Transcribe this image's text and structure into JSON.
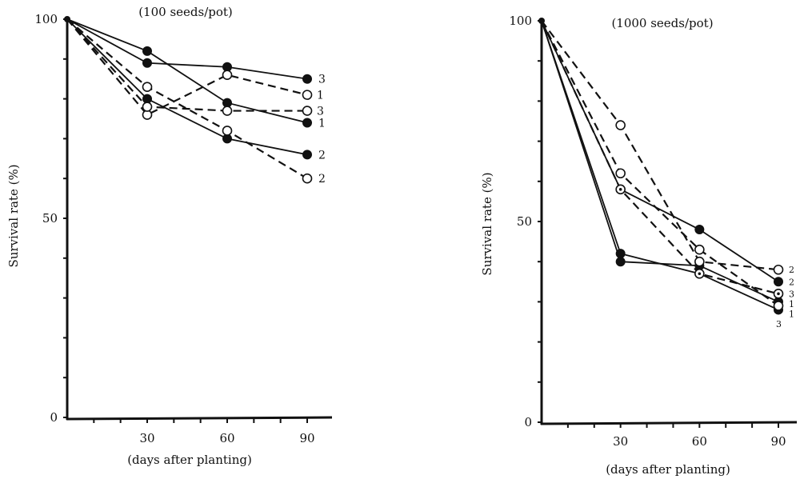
{
  "chart_data": [
    {
      "type": "line",
      "title": "(100 seeds/pot)",
      "xlabel": "(days after planting)",
      "ylabel": "Survival rate (%)",
      "x": [
        0,
        30,
        60,
        90
      ],
      "xticks": [
        "30",
        "60",
        "90"
      ],
      "yticks": [
        "0",
        "50",
        "100"
      ],
      "xlim": [
        0,
        100
      ],
      "ylim": [
        0,
        100
      ],
      "grid": false,
      "legend": "none",
      "series": [
        {
          "name": "1",
          "marker": "filled",
          "line": "solid",
          "values": [
            100,
            92,
            79,
            74
          ]
        },
        {
          "name": "2",
          "marker": "filled",
          "line": "solid",
          "values": [
            100,
            80,
            70,
            66
          ]
        },
        {
          "name": "3",
          "marker": "filled",
          "line": "solid",
          "values": [
            100,
            89,
            88,
            85
          ]
        },
        {
          "name": "1",
          "marker": "open",
          "line": "dashed",
          "values": [
            100,
            76,
            86,
            81
          ]
        },
        {
          "name": "2",
          "marker": "open",
          "line": "dashed",
          "values": [
            100,
            83,
            72,
            60
          ]
        },
        {
          "name": "3",
          "marker": "open",
          "line": "dashed",
          "values": [
            100,
            78,
            77,
            77
          ]
        }
      ]
    },
    {
      "type": "line",
      "title": "(1000 seeds/pot)",
      "xlabel": "(days after planting)",
      "ylabel": "Survival rate (%)",
      "x": [
        0,
        30,
        60,
        90
      ],
      "xticks": [
        "30",
        "60",
        "90"
      ],
      "yticks": [
        "0",
        "50",
        "100"
      ],
      "xlim": [
        0,
        100
      ],
      "ylim": [
        0,
        100
      ],
      "grid": false,
      "legend": "none",
      "series": [
        {
          "name": "1",
          "marker": "filled",
          "line": "solid",
          "values": [
            100,
            40,
            39,
            30
          ]
        },
        {
          "name": "2",
          "marker": "filled",
          "line": "solid",
          "values": [
            100,
            58,
            48,
            35
          ]
        },
        {
          "name": "3",
          "marker": "filled",
          "line": "solid",
          "values": [
            100,
            42,
            37,
            28
          ]
        },
        {
          "name": "1",
          "marker": "open",
          "line": "dashed",
          "values": [
            100,
            62,
            43,
            29
          ]
        },
        {
          "name": "2",
          "marker": "open",
          "line": "dashed",
          "values": [
            100,
            74,
            40,
            38
          ]
        },
        {
          "name": "3",
          "marker": "dotted",
          "line": "dashed",
          "values": [
            100,
            58,
            37,
            32
          ]
        }
      ],
      "end_labels": [
        "2",
        "2",
        "3",
        "1",
        "1",
        "3"
      ]
    }
  ]
}
